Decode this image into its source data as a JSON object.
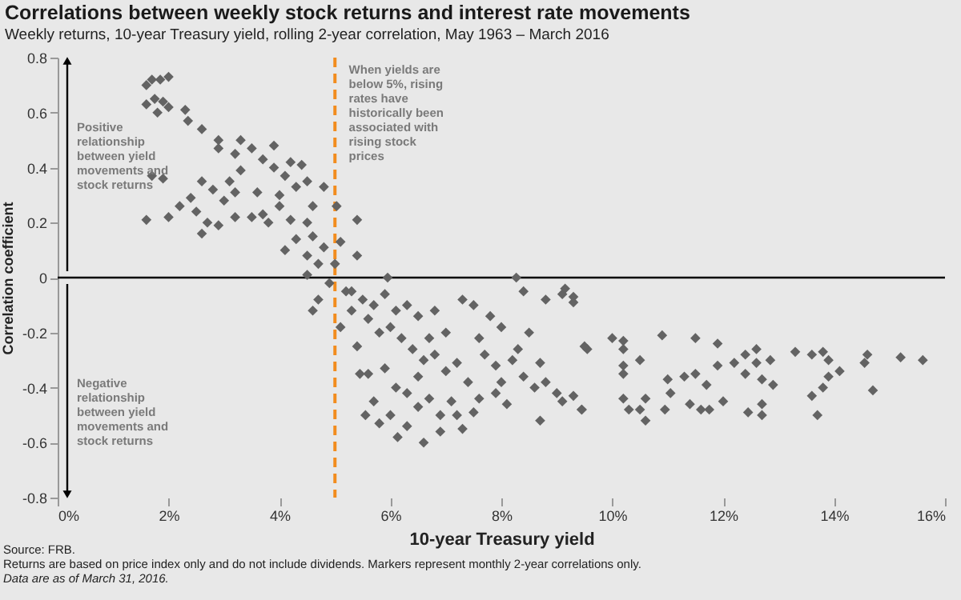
{
  "chart_data": {
    "type": "scatter",
    "title": "Correlations between weekly stock returns and interest rate movements",
    "subtitle": "Weekly returns, 10-year Treasury yield, rolling 2-year correlation, May 1963 – March 2016",
    "xlabel": "10-year Treasury yield",
    "ylabel": "Correlation coefficient",
    "annotations": [
      "When yields are below 5%, rising rates have historically been associated with rising stock prices",
      "Positive relationship between yield movements and stock returns",
      "Negative relationship between yield movements and stock returns",
      "Source: FRB.",
      "Returns are based on price index only and do not include dividends. Markers represent monthly 2-year correlations only.",
      "Data are as of March 31, 2016."
    ],
    "series": [
      {
        "color": "#636363",
        "x": [
          1.7,
          1.85,
          2.0,
          1.6,
          1.6,
          1.75,
          1.9,
          2.0,
          1.8,
          2.3,
          2.35,
          2.6,
          2.9,
          2.9,
          3.2,
          3.5,
          3.3,
          3.9,
          3.7,
          3.9,
          4.2,
          4.4,
          4.5,
          4.3,
          4.1,
          3.6,
          3.2,
          2.6,
          2.4,
          2.2,
          1.7,
          1.9,
          2.0,
          1.6,
          2.5,
          2.7,
          2.9,
          2.6,
          3.2,
          3.5,
          3.7,
          4.0,
          3.8,
          4.2,
          4.5,
          4.6,
          4.3,
          4.1,
          4.5,
          4.7,
          4.5,
          3.0,
          3.3,
          3.1,
          2.8,
          4.6,
          4.0,
          4.8,
          5.1,
          5.0,
          4.9,
          5.4,
          5.2,
          4.7,
          4.8,
          5.03,
          5.4,
          5.95,
          8.27,
          8.4,
          8.8,
          9.3,
          5.3,
          5.5,
          5.7,
          5.9,
          6.1,
          6.3,
          6.5,
          6.8,
          7.0,
          7.3,
          7.5,
          7.6,
          7.8,
          5.6,
          5.8,
          6.0,
          6.2,
          6.4,
          6.6,
          6.8,
          7.0,
          7.2,
          7.4,
          7.7,
          7.9,
          8.0,
          8.2,
          8.4,
          8.6,
          8.8,
          9.0,
          7.9,
          7.6,
          8.1,
          8.3,
          8.5,
          8.0,
          8.7,
          6.1,
          6.3,
          6.5,
          6.7,
          6.9,
          7.1,
          6.0,
          6.3,
          5.8,
          5.3,
          5.1,
          4.6,
          7.3,
          7.2,
          6.5,
          5.9,
          6.7,
          7.5,
          5.45,
          5.6,
          5.7,
          5.55,
          6.13,
          6.6,
          6.9,
          8.7,
          9.45,
          9.55,
          5.4,
          9.1,
          9.3,
          9.15,
          9.3,
          9.45,
          9.1,
          10.0,
          10.2,
          10.2,
          9.5,
          10.5,
          10.2,
          10.2,
          10.9,
          11.5,
          11.9,
          11.0,
          11.05,
          10.95,
          10.2,
          10.3,
          10.5,
          10.6,
          10.6,
          11.3,
          11.5,
          11.7,
          11.4,
          11.6,
          11.75,
          11.9,
          12.0,
          12.2,
          12.4,
          12.4,
          12.45,
          12.6,
          12.6,
          12.7,
          12.85,
          12.9,
          12.7,
          12.7,
          13.3,
          13.6,
          13.8,
          13.9,
          14.1,
          13.9,
          13.8,
          13.6,
          13.7,
          14.6,
          14.55,
          14.7,
          15.2,
          15.6
        ],
        "values": [
          0.72,
          0.72,
          0.73,
          0.7,
          0.63,
          0.65,
          0.64,
          0.62,
          0.6,
          0.61,
          0.57,
          0.54,
          0.5,
          0.47,
          0.45,
          0.47,
          0.5,
          0.48,
          0.43,
          0.4,
          0.42,
          0.41,
          0.35,
          0.33,
          0.37,
          0.31,
          0.31,
          0.35,
          0.29,
          0.26,
          0.37,
          0.36,
          0.22,
          0.21,
          0.24,
          0.2,
          0.19,
          0.16,
          0.22,
          0.22,
          0.23,
          0.26,
          0.2,
          0.21,
          0.2,
          0.15,
          0.14,
          0.1,
          0.08,
          0.05,
          0.01,
          0.28,
          0.39,
          0.35,
          0.32,
          0.26,
          0.3,
          0.11,
          0.13,
          0.05,
          -0.02,
          0.08,
          -0.05,
          -0.08,
          0.33,
          0.26,
          0.21,
          0.0,
          0.0,
          -0.05,
          -0.08,
          -0.09,
          -0.05,
          -0.08,
          -0.1,
          -0.06,
          -0.12,
          -0.1,
          -0.14,
          -0.12,
          -0.2,
          -0.08,
          -0.1,
          -0.22,
          -0.14,
          -0.15,
          -0.2,
          -0.18,
          -0.22,
          -0.26,
          -0.3,
          -0.28,
          -0.34,
          -0.31,
          -0.38,
          -0.28,
          -0.32,
          -0.38,
          -0.3,
          -0.36,
          -0.4,
          -0.38,
          -0.42,
          -0.42,
          -0.44,
          -0.46,
          -0.26,
          -0.2,
          -0.18,
          -0.31,
          -0.4,
          -0.42,
          -0.47,
          -0.44,
          -0.5,
          -0.45,
          -0.5,
          -0.54,
          -0.53,
          -0.12,
          -0.18,
          -0.12,
          -0.55,
          -0.5,
          -0.36,
          -0.33,
          -0.22,
          -0.49,
          -0.35,
          -0.35,
          -0.45,
          -0.5,
          -0.58,
          -0.6,
          -0.56,
          -0.52,
          -0.48,
          -0.26,
          -0.25,
          -0.06,
          -0.07,
          -0.04,
          -0.43,
          -0.48,
          -0.45,
          -0.22,
          -0.23,
          -0.26,
          -0.25,
          -0.3,
          -0.32,
          -0.35,
          -0.21,
          -0.22,
          -0.24,
          -0.37,
          -0.42,
          -0.48,
          -0.44,
          -0.48,
          -0.48,
          -0.52,
          -0.44,
          -0.36,
          -0.35,
          -0.39,
          -0.46,
          -0.48,
          -0.48,
          -0.32,
          -0.45,
          -0.31,
          -0.28,
          -0.35,
          -0.49,
          -0.26,
          -0.31,
          -0.37,
          -0.3,
          -0.39,
          -0.46,
          -0.5,
          -0.27,
          -0.28,
          -0.27,
          -0.3,
          -0.34,
          -0.36,
          -0.4,
          -0.43,
          -0.5,
          -0.28,
          -0.31,
          -0.41,
          -0.29,
          -0.3
        ]
      }
    ],
    "xlim": [
      0,
      16
    ],
    "xticks": [
      {
        "value": 0,
        "label": "0%"
      },
      {
        "value": 2,
        "label": "2%"
      },
      {
        "value": 4,
        "label": "4%"
      },
      {
        "value": 6,
        "label": "6%"
      },
      {
        "value": 8,
        "label": "8%"
      },
      {
        "value": 10,
        "label": "10%"
      },
      {
        "value": 12,
        "label": "12%"
      },
      {
        "value": 14,
        "label": "14%"
      },
      {
        "value": 16,
        "label": "16%"
      }
    ],
    "ylim": [
      -0.8,
      0.8
    ],
    "yticks": [
      -0.8,
      -0.6,
      -0.4,
      -0.2,
      0,
      0.2,
      0.4,
      0.6,
      0.8
    ],
    "ref_lines": [
      {
        "axis": "x",
        "value": 5,
        "color": "#f28c1e",
        "line_style": "dashed"
      },
      {
        "axis": "y",
        "value": 0,
        "color": "#000000",
        "line_style": "solid"
      }
    ],
    "marker": "diamond",
    "grid": false
  }
}
